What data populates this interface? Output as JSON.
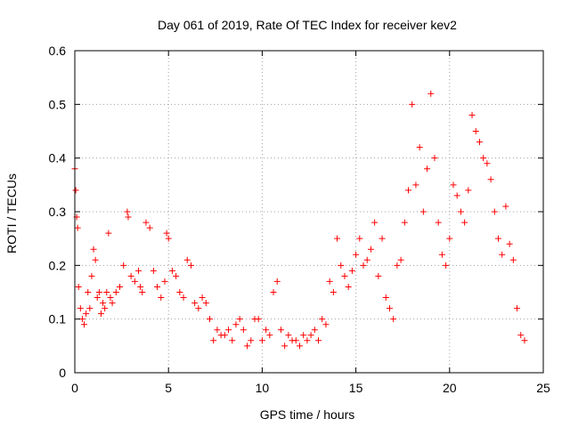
{
  "chart_data": {
    "type": "scatter",
    "title": "Day 061 of 2019, Rate Of TEC Index for receiver kev2",
    "xlabel": "GPS time / hours",
    "ylabel": "ROTI / TECUs",
    "xlim": [
      0,
      25
    ],
    "ylim": [
      0,
      0.6
    ],
    "xticks": [
      0,
      5,
      10,
      15,
      20,
      25
    ],
    "xtick_labels": [
      "0",
      "5",
      "10",
      "15",
      "20",
      "25"
    ],
    "yticks": [
      0,
      0.1,
      0.2,
      0.3,
      0.4,
      0.5,
      0.6
    ],
    "ytick_labels": [
      "0",
      "0.1",
      "0.2",
      "0.3",
      "0.4",
      "0.5",
      "0.6"
    ],
    "grid": true,
    "marker": "+",
    "color": "#ff0000",
    "series": [
      {
        "name": "ROTI kev2",
        "x": [
          0.0,
          0.05,
          0.1,
          0.15,
          0.2,
          0.3,
          0.4,
          0.5,
          0.6,
          0.7,
          0.8,
          0.9,
          1.0,
          1.1,
          1.2,
          1.3,
          1.4,
          1.5,
          1.6,
          1.7,
          1.8,
          1.9,
          2.0,
          2.2,
          2.4,
          2.6,
          2.8,
          2.85,
          3.0,
          3.2,
          3.4,
          3.5,
          3.6,
          3.8,
          4.0,
          4.2,
          4.4,
          4.6,
          4.8,
          4.9,
          5.0,
          5.2,
          5.4,
          5.6,
          5.8,
          6.0,
          6.2,
          6.4,
          6.6,
          6.8,
          7.0,
          7.2,
          7.4,
          7.6,
          7.8,
          8.0,
          8.2,
          8.4,
          8.6,
          8.8,
          9.0,
          9.2,
          9.4,
          9.6,
          9.8,
          10.0,
          10.2,
          10.4,
          10.6,
          10.8,
          11.0,
          11.2,
          11.4,
          11.6,
          11.8,
          12.0,
          12.2,
          12.4,
          12.6,
          12.8,
          13.0,
          13.2,
          13.4,
          13.6,
          13.8,
          14.0,
          14.2,
          14.4,
          14.6,
          14.8,
          15.0,
          15.2,
          15.4,
          15.6,
          15.8,
          16.0,
          16.2,
          16.4,
          16.6,
          16.8,
          17.0,
          17.2,
          17.4,
          17.6,
          17.8,
          18.0,
          18.2,
          18.4,
          18.6,
          18.8,
          19.0,
          19.2,
          19.4,
          19.6,
          19.8,
          20.0,
          20.2,
          20.4,
          20.6,
          20.8,
          21.0,
          21.2,
          21.4,
          21.6,
          21.8,
          22.0,
          22.2,
          22.4,
          22.6,
          22.8,
          23.0,
          23.2,
          23.4,
          23.6,
          23.8,
          24.0
        ],
        "y": [
          0.38,
          0.34,
          0.29,
          0.27,
          0.16,
          0.12,
          0.1,
          0.09,
          0.11,
          0.15,
          0.12,
          0.18,
          0.23,
          0.21,
          0.14,
          0.15,
          0.11,
          0.13,
          0.12,
          0.15,
          0.26,
          0.14,
          0.13,
          0.15,
          0.16,
          0.2,
          0.3,
          0.29,
          0.18,
          0.17,
          0.19,
          0.16,
          0.15,
          0.28,
          0.27,
          0.19,
          0.16,
          0.14,
          0.17,
          0.26,
          0.25,
          0.19,
          0.18,
          0.15,
          0.14,
          0.21,
          0.2,
          0.13,
          0.12,
          0.14,
          0.13,
          0.1,
          0.06,
          0.08,
          0.07,
          0.07,
          0.08,
          0.06,
          0.09,
          0.1,
          0.08,
          0.05,
          0.06,
          0.1,
          0.1,
          0.06,
          0.08,
          0.07,
          0.15,
          0.17,
          0.08,
          0.05,
          0.07,
          0.06,
          0.06,
          0.05,
          0.07,
          0.06,
          0.07,
          0.08,
          0.06,
          0.1,
          0.09,
          0.17,
          0.15,
          0.25,
          0.2,
          0.18,
          0.16,
          0.19,
          0.22,
          0.25,
          0.2,
          0.21,
          0.23,
          0.28,
          0.18,
          0.25,
          0.14,
          0.12,
          0.1,
          0.2,
          0.21,
          0.28,
          0.34,
          0.5,
          0.35,
          0.42,
          0.3,
          0.38,
          0.52,
          0.4,
          0.28,
          0.22,
          0.2,
          0.25,
          0.35,
          0.33,
          0.3,
          0.28,
          0.34,
          0.48,
          0.45,
          0.43,
          0.4,
          0.39,
          0.36,
          0.3,
          0.25,
          0.22,
          0.31,
          0.24,
          0.21,
          0.12,
          0.07,
          0.06
        ]
      }
    ]
  }
}
